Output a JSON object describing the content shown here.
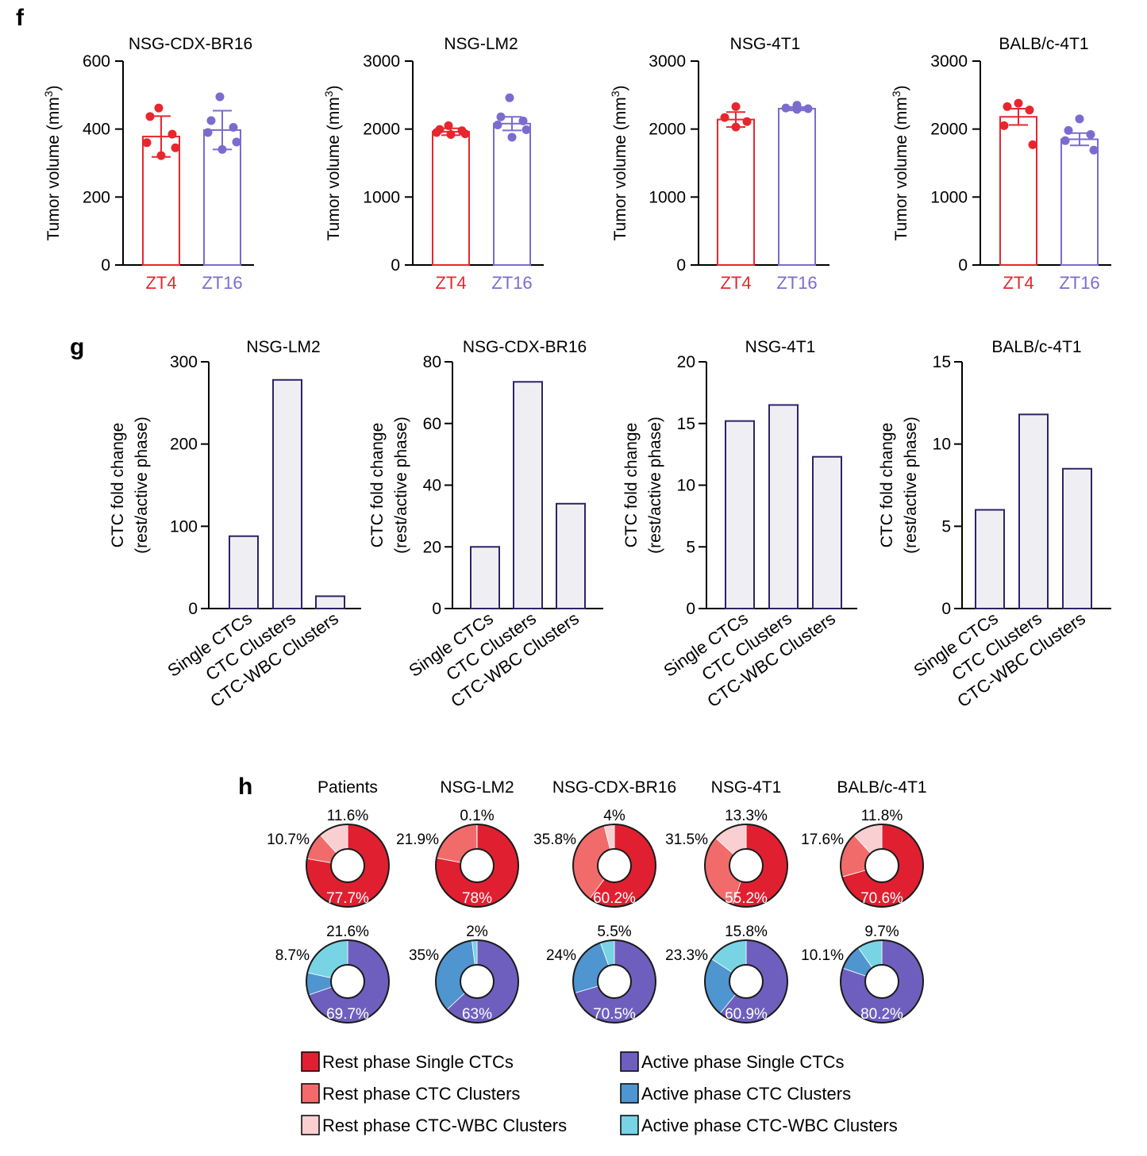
{
  "panels": {
    "f": "f",
    "g": "g",
    "h": "h"
  },
  "colors": {
    "zt4": "#e8262d",
    "zt16": "#7c6bcf",
    "bar_fill": "#efeff3",
    "bar_stroke": "#2d2466",
    "rest_single": "#e02030",
    "rest_cluster": "#f26b6b",
    "rest_wbc": "#f9cfd2",
    "active_single": "#6e5fbf",
    "active_cluster": "#4f95cf",
    "active_wbc": "#78d3e4"
  },
  "chart_data": [
    {
      "panel": "f",
      "type": "bar",
      "title": "NSG-CDX-BR16",
      "ylabel": "Tumor volume (mm³)",
      "ylim": [
        0,
        600
      ],
      "yticks": [
        0,
        200,
        400,
        600
      ],
      "categories": [
        "ZT4",
        "ZT16"
      ],
      "values": [
        378,
        397
      ],
      "errors": [
        60,
        57
      ],
      "points": [
        [
          462,
          437,
          385,
          360,
          345,
          322
        ],
        [
          495,
          425,
          405,
          390,
          362,
          340
        ]
      ]
    },
    {
      "panel": "f",
      "type": "bar",
      "title": "NSG-LM2",
      "ylabel": "Tumor volume (mm³)",
      "ylim": [
        0,
        3000
      ],
      "yticks": [
        0,
        1000,
        2000,
        3000
      ],
      "categories": [
        "ZT4",
        "ZT16"
      ],
      "values": [
        1960,
        2080
      ],
      "errors": [
        50,
        100
      ],
      "points": [
        [
          2050,
          1995,
          1975,
          1950,
          1930,
          1920
        ],
        [
          2460,
          2180,
          2120,
          2060,
          1990,
          1880
        ]
      ]
    },
    {
      "panel": "f",
      "type": "bar",
      "title": "NSG-4T1",
      "ylabel": "Tumor volume (mm³)",
      "ylim": [
        0,
        3000
      ],
      "yticks": [
        0,
        1000,
        2000,
        3000
      ],
      "categories": [
        "ZT4",
        "ZT16"
      ],
      "values": [
        2140,
        2300
      ],
      "errors": [
        110,
        25
      ],
      "points": [
        [
          2330,
          2170,
          2110,
          2030
        ],
        [
          2350,
          2310,
          2300,
          2290
        ]
      ]
    },
    {
      "panel": "f",
      "type": "bar",
      "title": "BALB/c-4T1",
      "ylabel": "Tumor volume (mm³)",
      "ylim": [
        0,
        3000
      ],
      "yticks": [
        0,
        1000,
        2000,
        3000
      ],
      "categories": [
        "ZT4",
        "ZT16"
      ],
      "values": [
        2180,
        1850
      ],
      "errors": [
        120,
        90
      ],
      "points": [
        [
          2380,
          2330,
          2280,
          2050,
          1770
        ],
        [
          2150,
          1980,
          1920,
          1830,
          1690
        ]
      ]
    },
    {
      "panel": "g",
      "type": "bar",
      "title": "NSG-LM2",
      "ylabel": [
        "CTC fold change",
        "(rest/active phase)"
      ],
      "ylim": [
        0,
        300
      ],
      "yticks": [
        0,
        100,
        200,
        300
      ],
      "categories": [
        "Single CTCs",
        "CTC Clusters",
        "CTC-WBC Clusters"
      ],
      "values": [
        88,
        278,
        15
      ]
    },
    {
      "panel": "g",
      "type": "bar",
      "title": "NSG-CDX-BR16",
      "ylabel": [
        "CTC fold change",
        "(rest/active phase)"
      ],
      "ylim": [
        0,
        80
      ],
      "yticks": [
        0,
        20,
        40,
        60,
        80
      ],
      "categories": [
        "Single CTCs",
        "CTC Clusters",
        "CTC-WBC Clusters"
      ],
      "values": [
        20,
        73.5,
        34
      ]
    },
    {
      "panel": "g",
      "type": "bar",
      "title": "NSG-4T1",
      "ylabel": [
        "CTC fold change",
        "(rest/active phase)"
      ],
      "ylim": [
        0,
        20
      ],
      "yticks": [
        0,
        5,
        10,
        15,
        20
      ],
      "categories": [
        "Single CTCs",
        "CTC Clusters",
        "CTC-WBC Clusters"
      ],
      "values": [
        15.2,
        16.5,
        12.3
      ]
    },
    {
      "panel": "g",
      "type": "bar",
      "title": "BALB/c-4T1",
      "ylabel": [
        "CTC fold change",
        "(rest/active phase)"
      ],
      "ylim": [
        0,
        15
      ],
      "yticks": [
        0,
        5,
        10,
        15
      ],
      "categories": [
        "Single CTCs",
        "CTC Clusters",
        "CTC-WBC Clusters"
      ],
      "values": [
        6,
        11.8,
        8.5
      ]
    },
    {
      "panel": "h",
      "type": "pie",
      "groups": [
        {
          "name": "Patients",
          "rest": {
            "single": 77.7,
            "cluster": 10.7,
            "wbc": 11.6,
            "labels": [
              "77.7%",
              "10.7%",
              "11.6%"
            ]
          },
          "active": {
            "single": 69.7,
            "cluster": 8.7,
            "wbc": 21.6,
            "labels": [
              "69.7%",
              "8.7%",
              "21.6%"
            ]
          }
        },
        {
          "name": "NSG-LM2",
          "rest": {
            "single": 78,
            "cluster": 21.9,
            "wbc": 0.1,
            "labels": [
              "78%",
              "21.9%",
              "0.1%"
            ]
          },
          "active": {
            "single": 63,
            "cluster": 35,
            "wbc": 2,
            "labels": [
              "63%",
              "35%",
              "2%"
            ]
          }
        },
        {
          "name": "NSG-CDX-BR16",
          "rest": {
            "single": 60.2,
            "cluster": 35.8,
            "wbc": 4,
            "labels": [
              "60.2%",
              "35.8%",
              "4%"
            ]
          },
          "active": {
            "single": 70.5,
            "cluster": 24,
            "wbc": 5.5,
            "labels": [
              "70.5%",
              "24%",
              "5.5%"
            ]
          }
        },
        {
          "name": "NSG-4T1",
          "rest": {
            "single": 55.2,
            "cluster": 31.5,
            "wbc": 13.3,
            "labels": [
              "55.2%",
              "31.5%",
              "13.3%"
            ]
          },
          "active": {
            "single": 60.9,
            "cluster": 23.3,
            "wbc": 15.8,
            "labels": [
              "60.9%",
              "23.3%",
              "15.8%"
            ]
          }
        },
        {
          "name": "BALB/c-4T1",
          "rest": {
            "single": 70.6,
            "cluster": 17.6,
            "wbc": 11.8,
            "labels": [
              "70.6%",
              "17.6%",
              "11.8%"
            ]
          },
          "active": {
            "single": 80.2,
            "cluster": 10.1,
            "wbc": 9.7,
            "labels": [
              "80.2%",
              "10.1%",
              "9.7%"
            ]
          }
        }
      ]
    }
  ],
  "legend": [
    {
      "label": "Rest phase Single CTCs",
      "color_key": "rest_single"
    },
    {
      "label": "Rest phase CTC Clusters",
      "color_key": "rest_cluster"
    },
    {
      "label": "Rest phase CTC-WBC Clusters",
      "color_key": "rest_wbc"
    },
    {
      "label": "Active phase Single CTCs",
      "color_key": "active_single"
    },
    {
      "label": "Active phase CTC Clusters",
      "color_key": "active_cluster"
    },
    {
      "label": "Active phase CTC-WBC Clusters",
      "color_key": "active_wbc"
    }
  ]
}
